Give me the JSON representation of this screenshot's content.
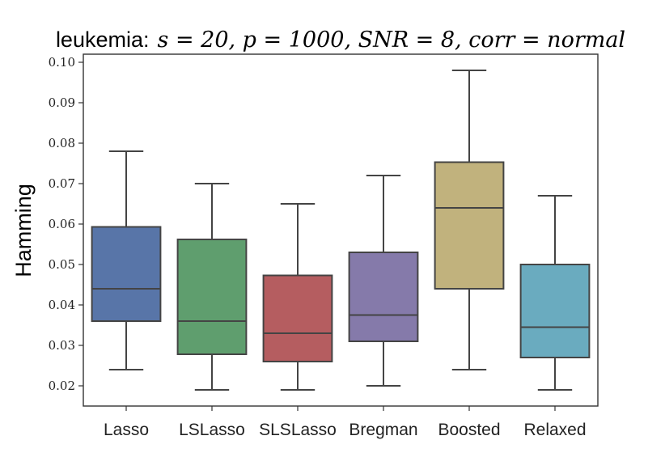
{
  "chart_data": {
    "type": "box",
    "title_prefix": "leukemia:",
    "title_math": "s = 20, p = 1000, SNR = 8, corr = normal",
    "xlabel": "",
    "ylabel": "Hamming",
    "ylim": [
      0.015,
      0.102
    ],
    "yticks": [
      0.02,
      0.03,
      0.04,
      0.05,
      0.06,
      0.07,
      0.08,
      0.09,
      0.1
    ],
    "ytick_labels": [
      "0.02",
      "0.03",
      "0.04",
      "0.05",
      "0.06",
      "0.07",
      "0.08",
      "0.09",
      "0.10"
    ],
    "grid": false,
    "categories": [
      "Lasso",
      "LSLasso",
      "SLSLasso",
      "Bregman",
      "Boosted",
      "Relaxed"
    ],
    "boxes": [
      {
        "name": "Lasso",
        "whisker_low": 0.024,
        "q1": 0.036,
        "median": 0.044,
        "q3": 0.0593,
        "whisker_high": 0.078,
        "color": "#5875a8"
      },
      {
        "name": "LSLasso",
        "whisker_low": 0.019,
        "q1": 0.0278,
        "median": 0.036,
        "q3": 0.0562,
        "whisker_high": 0.07,
        "color": "#5f9e6e"
      },
      {
        "name": "SLSLasso",
        "whisker_low": 0.019,
        "q1": 0.026,
        "median": 0.033,
        "q3": 0.0473,
        "whisker_high": 0.065,
        "color": "#b55d60"
      },
      {
        "name": "Bregman",
        "whisker_low": 0.02,
        "q1": 0.031,
        "median": 0.0375,
        "q3": 0.053,
        "whisker_high": 0.072,
        "color": "#857aaa"
      },
      {
        "name": "Boosted",
        "whisker_low": 0.024,
        "q1": 0.044,
        "median": 0.064,
        "q3": 0.0753,
        "whisker_high": 0.098,
        "color": "#c1b27d"
      },
      {
        "name": "Relaxed",
        "whisker_low": 0.019,
        "q1": 0.027,
        "median": 0.0345,
        "q3": 0.05,
        "whisker_high": 0.067,
        "color": "#6aabbf"
      }
    ]
  }
}
